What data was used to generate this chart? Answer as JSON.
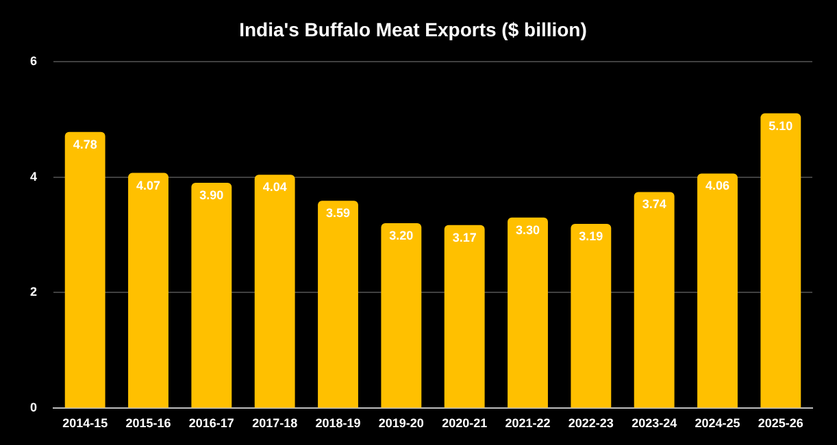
{
  "chart_data": {
    "type": "bar",
    "title": "India's Buffalo Meat Exports ($ billion)",
    "categories": [
      "2014-15",
      "2015-16",
      "2016-17",
      "2017-18",
      "2018-19",
      "2019-20",
      "2020-21",
      "2021-22",
      "2022-23",
      "2023-24",
      "2024-25",
      "2025-26"
    ],
    "values": [
      4.78,
      4.07,
      3.9,
      4.04,
      3.59,
      3.2,
      3.17,
      3.3,
      3.19,
      3.74,
      4.06,
      5.1
    ],
    "value_labels": [
      "4.78",
      "4.07",
      "3.90",
      "4.04",
      "3.59",
      "3.20",
      "3.17",
      "3.30",
      "3.19",
      "3.74",
      "4.06",
      "5.10"
    ],
    "color": "#ffc000",
    "ylim": [
      0,
      6
    ],
    "yticks": [
      0,
      2,
      4,
      6
    ],
    "grid": "y",
    "legend": false
  }
}
